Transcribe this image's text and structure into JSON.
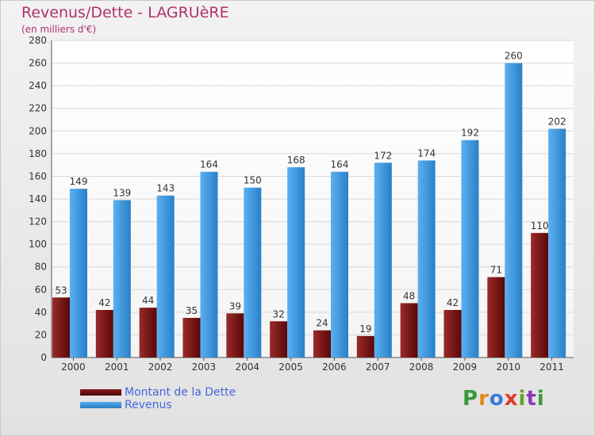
{
  "title": "Revenus/Dette - LAGRUèRE",
  "subtitle": "(en milliers d'€)",
  "logo_text": "Proxiti",
  "colors": {
    "dette": "#7a1016",
    "revenus": "#3a96db",
    "title": "#b0306e",
    "legend_text": "#4466dd"
  },
  "legend": [
    {
      "name": "Montant de la Dette",
      "color": "#6a0a0a"
    },
    {
      "name": "Revenus",
      "color": "#3a96db"
    }
  ],
  "chart_data": {
    "type": "bar",
    "title": "Revenus/Dette - LAGRUèRE",
    "subtitle": "(en milliers d'€)",
    "categories": [
      "2000",
      "2001",
      "2002",
      "2003",
      "2004",
      "2005",
      "2006",
      "2007",
      "2008",
      "2009",
      "2010",
      "2011"
    ],
    "series": [
      {
        "name": "Montant de la Dette",
        "values": [
          53,
          42,
          44,
          35,
          39,
          32,
          24,
          19,
          48,
          42,
          71,
          110
        ]
      },
      {
        "name": "Revenus",
        "values": [
          149,
          139,
          143,
          164,
          150,
          168,
          164,
          172,
          174,
          192,
          260,
          202
        ]
      }
    ],
    "ylim": [
      0,
      280
    ],
    "yticks": [
      0,
      20,
      40,
      60,
      80,
      100,
      120,
      140,
      160,
      180,
      200,
      220,
      240,
      260,
      280
    ],
    "grid": true,
    "legend_position": "bottom-left"
  }
}
